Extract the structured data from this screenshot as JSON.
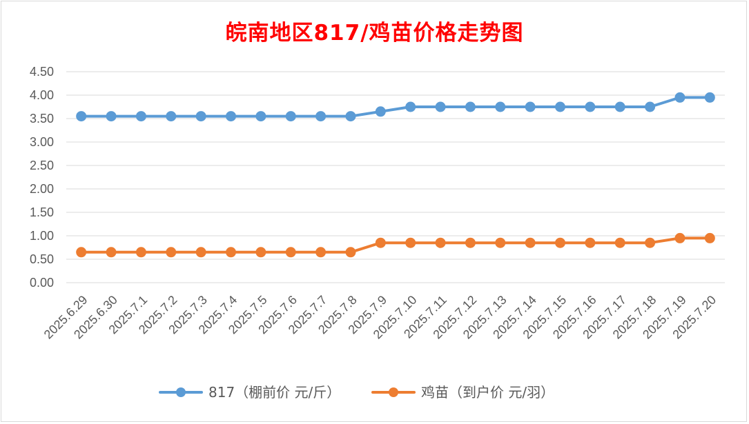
{
  "chart_data": {
    "type": "line",
    "title": "皖南地区817/鸡苗价格走势图",
    "categories": [
      "2025.6.29",
      "2025.6.30",
      "2025.7.1",
      "2025.7.2",
      "2025.7.3",
      "2025.7.4",
      "2025.7.5",
      "2025.7.6",
      "2025.7.7",
      "2025.7.8",
      "2025.7.9",
      "2025.7.10",
      "2025.7.11",
      "2025.7.12",
      "2025.7.13",
      "2025.7.14",
      "2025.7.15",
      "2025.7.16",
      "2025.7.17",
      "2025.7.18",
      "2025.7.19",
      "2025.7.20"
    ],
    "series": [
      {
        "name": "817（棚前价 元/斤）",
        "color": "#5b9bd5",
        "values": [
          3.55,
          3.55,
          3.55,
          3.55,
          3.55,
          3.55,
          3.55,
          3.55,
          3.55,
          3.55,
          3.65,
          3.75,
          3.75,
          3.75,
          3.75,
          3.75,
          3.75,
          3.75,
          3.75,
          3.75,
          3.95,
          3.95
        ]
      },
      {
        "name": "鸡苗（到户价 元/羽）",
        "color": "#ed7d31",
        "values": [
          0.65,
          0.65,
          0.65,
          0.65,
          0.65,
          0.65,
          0.65,
          0.65,
          0.65,
          0.65,
          0.85,
          0.85,
          0.85,
          0.85,
          0.85,
          0.85,
          0.85,
          0.85,
          0.85,
          0.85,
          0.95,
          0.95
        ]
      }
    ],
    "yticks": [
      "0.00",
      "0.50",
      "1.00",
      "1.50",
      "2.00",
      "2.50",
      "3.00",
      "3.50",
      "4.00",
      "4.50"
    ],
    "ylim": [
      0,
      4.5
    ],
    "grid": true,
    "legend": "bottom",
    "title_color": "#ff0000"
  }
}
